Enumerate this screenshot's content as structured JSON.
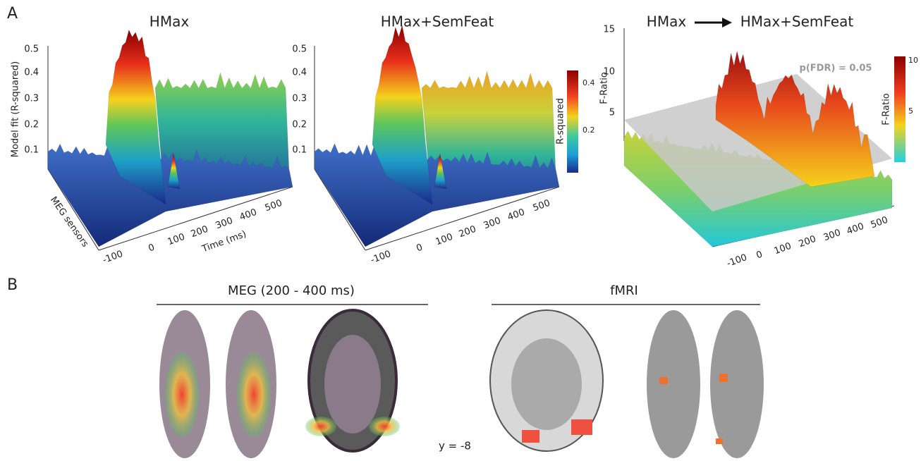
{
  "panel_a": {
    "label": "A",
    "plots": [
      {
        "title": "HMax",
        "y_axis_label": "Model fit (R-squared)",
        "y_ticks": [
          "0.5",
          "0.4",
          "0.3",
          "0.2",
          "0.1"
        ],
        "depth_axis_label": "MEG sensors",
        "x_ticks": [
          "-100",
          "0",
          "100",
          "200",
          "300",
          "400",
          "500"
        ],
        "x_axis_label": "Time (ms)"
      },
      {
        "title": "HMax+SemFeat",
        "y_ticks": [
          "0.5",
          "0.4",
          "0.3",
          "0.2",
          "0.1"
        ],
        "x_ticks": [
          "-100",
          "0",
          "100",
          "200",
          "300",
          "400",
          "500"
        ]
      },
      {
        "title_from": "HMax",
        "title_to": "HMax+SemFeat",
        "y_axis_label": "F-Ratio",
        "y_ticks": [
          "15",
          "10",
          "5"
        ],
        "threshold_label": "p(FDR) = 0.05",
        "x_ticks": [
          "-100",
          "0",
          "100",
          "200",
          "300",
          "400",
          "500"
        ]
      }
    ],
    "colorbars": [
      {
        "label": "R-squared",
        "ticks": [
          "0.4",
          "0.2"
        ]
      },
      {
        "label": "F-Ratio",
        "ticks": [
          "10",
          "5"
        ]
      }
    ]
  },
  "panel_b": {
    "label": "B",
    "groups": [
      {
        "title": "MEG (200 - 400 ms)"
      },
      {
        "title": "fMRI"
      }
    ],
    "slice_label": "y = -8"
  }
}
